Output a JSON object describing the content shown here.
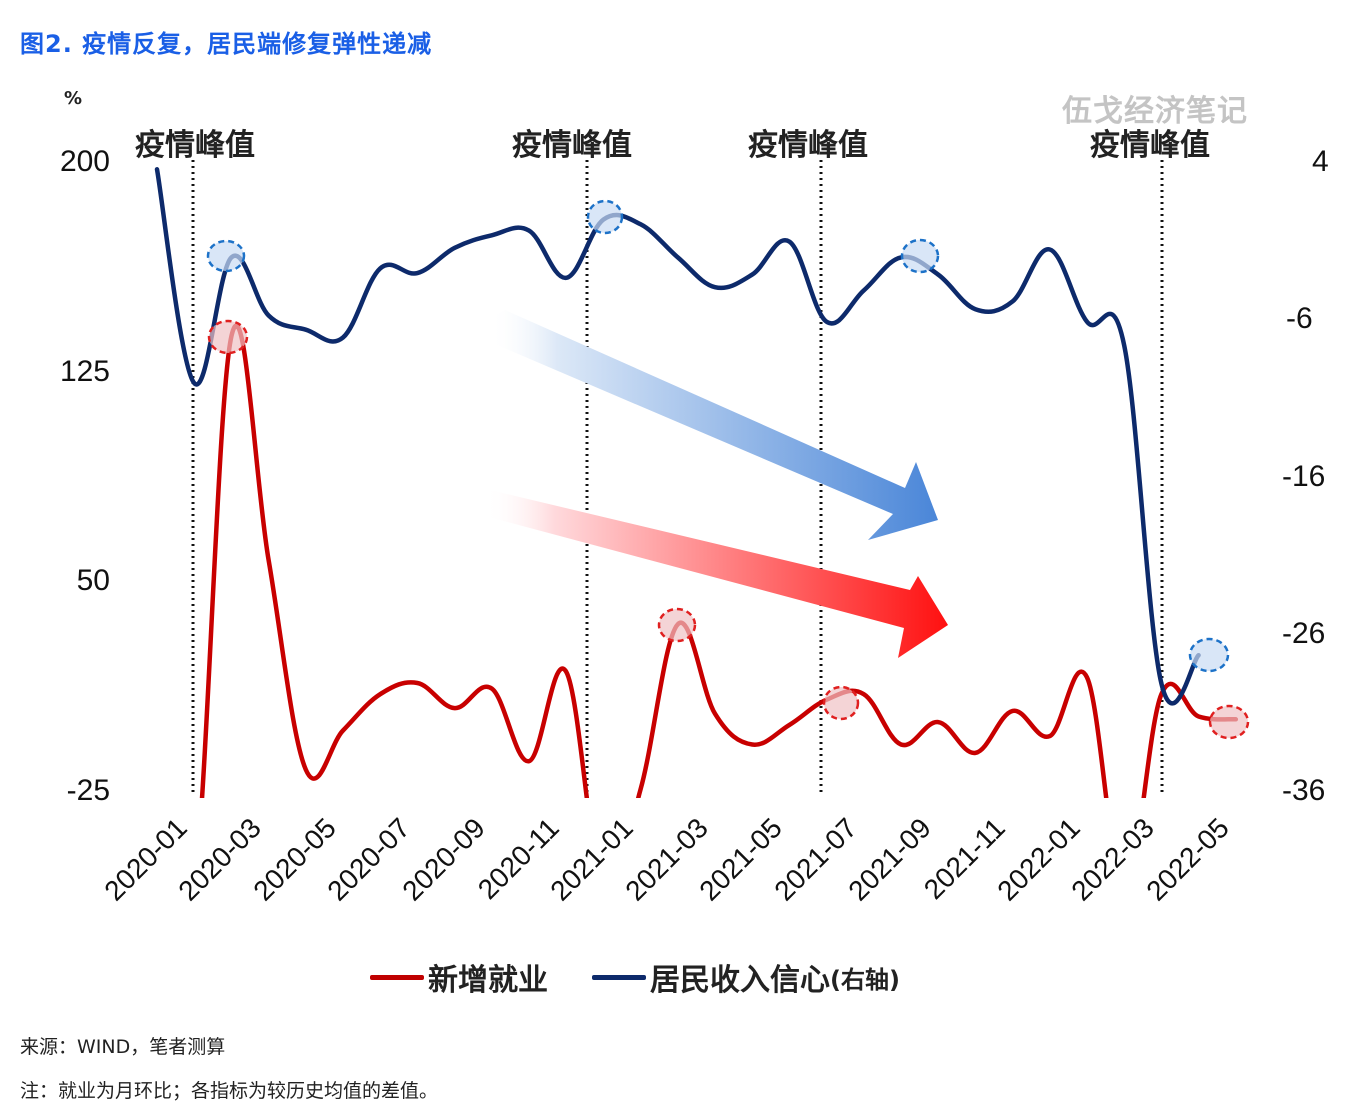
{
  "figure": {
    "title": "图2. 疫情反复，居民端修复弹性递减",
    "watermark": "伍戈经济笔记",
    "unit_left": "%",
    "source": "来源：WIND，笔者测算",
    "note": "注：就业为月环比；各指标为较历史均值的差值。",
    "title_color": "#1a5fe6"
  },
  "annotations": {
    "peak_label": "疫情峰值",
    "peaks": [
      {
        "label": "疫情峰值",
        "at": "2020-02"
      },
      {
        "label": "疫情峰值",
        "at": "2020-12/2021-01"
      },
      {
        "label": "疫情峰值",
        "at": "2021-07/08"
      },
      {
        "label": "疫情峰值",
        "at": "2022-04"
      }
    ],
    "trend_arrows": [
      {
        "color": "#4a86d8",
        "meaning": "居民收入信心修复递减"
      },
      {
        "color": "#ff1a1a",
        "meaning": "新增就业修复递减"
      }
    ]
  },
  "legend": {
    "series1": "新增就业",
    "series2_main": "居民收入信心",
    "series2_suffix": "(右轴)"
  },
  "axes": {
    "left_ticks": [
      "200",
      "125",
      "50",
      "-25"
    ],
    "right_ticks": [
      "4",
      "-6",
      "-16",
      "-26",
      "-36"
    ],
    "x_ticks": [
      "2020-01",
      "2020-03",
      "2020-05",
      "2020-07",
      "2020-09",
      "2020-11",
      "2021-01",
      "2021-03",
      "2021-05",
      "2021-07",
      "2021-09",
      "2021-11",
      "2022-01",
      "2022-03",
      "2022-05"
    ]
  },
  "chart_data": {
    "type": "line",
    "title": "图2. 疫情反复，居民端修复弹性递减",
    "xlabel": "",
    "ylabel": "%",
    "ylabel_right": "",
    "ylim": [
      -25,
      200
    ],
    "ylim_right": [
      -36,
      4
    ],
    "grid": false,
    "legend_position": "bottom",
    "x": [
      "2020-01",
      "2020-02",
      "2020-03",
      "2020-04",
      "2020-05",
      "2020-06",
      "2020-07",
      "2020-08",
      "2020-09",
      "2020-10",
      "2020-11",
      "2020-12",
      "2021-01",
      "2021-02",
      "2021-03",
      "2021-04",
      "2021-05",
      "2021-06",
      "2021-07",
      "2021-08",
      "2021-09",
      "2021-10",
      "2021-11",
      "2021-12",
      "2022-01",
      "2022-02",
      "2022-03",
      "2022-04",
      "2022-05",
      "2022-06"
    ],
    "series": [
      {
        "name": "新增就业",
        "axis": "left",
        "color": "#c00000",
        "values": [
          -60,
          -60,
          138,
          58,
          -17,
          -3,
          10,
          14,
          5,
          12,
          -14,
          18,
          -60,
          -24,
          35,
          3,
          -8,
          -1,
          8,
          10,
          -8,
          0,
          -11,
          4,
          -5,
          16,
          -60,
          10,
          2,
          1
        ]
      },
      {
        "name": "居民收入信心(右轴)",
        "axis": "right",
        "color": "#0d2a6b",
        "values": [
          3.6,
          -10,
          -2,
          -5.7,
          -6.6,
          -7.1,
          -2.7,
          -3,
          -1.4,
          -0.6,
          -0.3,
          -3.3,
          0.4,
          0.1,
          -2,
          -3.9,
          -3.1,
          -1,
          -6.1,
          -4.1,
          -2,
          -3.1,
          -5.3,
          -4.8,
          -1.5,
          -6.1,
          -7.6,
          -29.1,
          -27.3,
          null
        ]
      }
    ],
    "annotations": [
      "疫情峰值",
      "疫情峰值",
      "疫情峰值",
      "疫情峰值"
    ],
    "highlight_points": {
      "新增就业": [
        "2020-03",
        "2021-03",
        "2021-08",
        "2022-06"
      ],
      "居民收入信心": [
        "2020-03",
        "2021-01",
        "2021-09",
        "2022-05"
      ]
    }
  }
}
